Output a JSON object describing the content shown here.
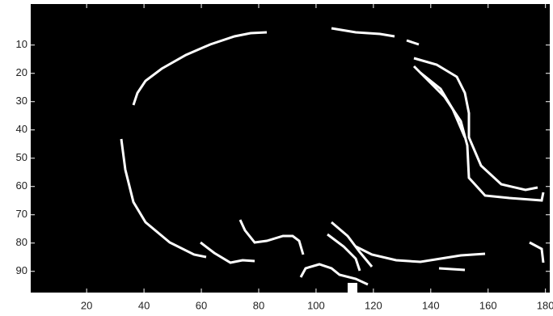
{
  "chart_data": {
    "type": "image",
    "xlim": [
      0.5,
      181.5
    ],
    "ylim": [
      97.5,
      -4.5
    ],
    "xticks": [
      20,
      40,
      60,
      80,
      100,
      120,
      140,
      160,
      180
    ],
    "yticks": [
      10,
      20,
      30,
      40,
      50,
      60,
      70,
      80,
      90
    ],
    "background": "#000000",
    "edge_color": "#ffffff"
  }
}
